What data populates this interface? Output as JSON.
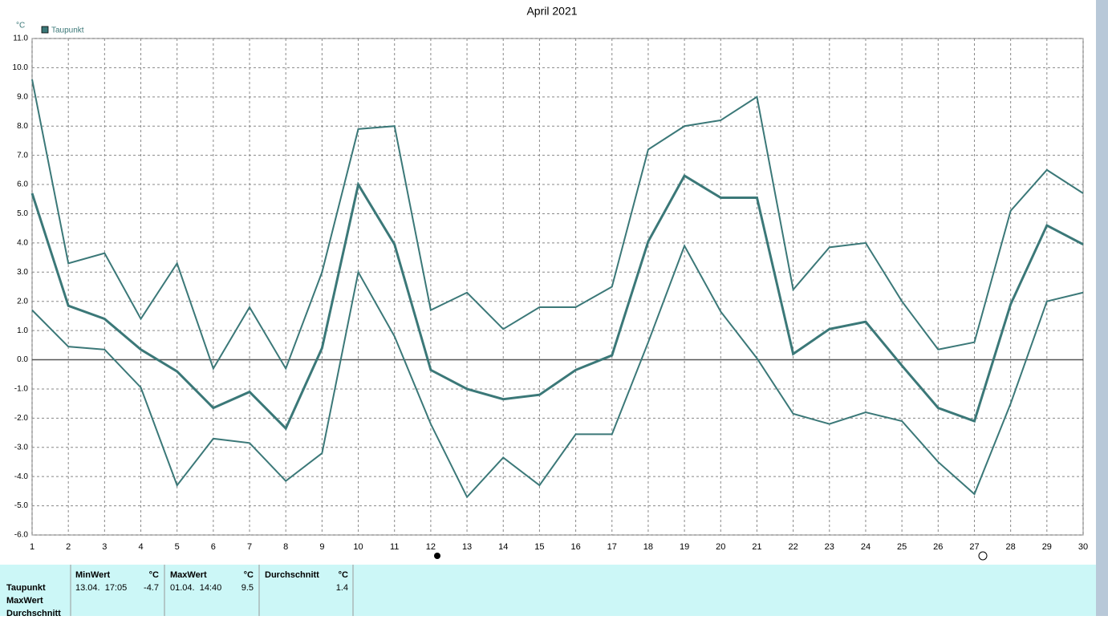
{
  "chart_data": {
    "type": "line",
    "title": "April 2021",
    "y_unit": "°C",
    "legend": "top-left",
    "grid": true,
    "color": "#3b7878",
    "x": [
      1,
      2,
      3,
      4,
      5,
      6,
      7,
      8,
      9,
      10,
      11,
      12,
      13,
      14,
      15,
      16,
      17,
      18,
      19,
      20,
      21,
      22,
      23,
      24,
      25,
      26,
      27,
      28,
      29,
      30
    ],
    "xlim": [
      1,
      30
    ],
    "xticks": [
      1,
      2,
      3,
      4,
      5,
      6,
      7,
      8,
      9,
      10,
      11,
      12,
      13,
      14,
      15,
      16,
      17,
      18,
      19,
      20,
      21,
      22,
      23,
      24,
      25,
      26,
      27,
      28,
      29,
      30
    ],
    "ylim": [
      -6,
      11
    ],
    "yticks": [
      {
        "value": -6,
        "label": "-6.0"
      },
      {
        "value": -5,
        "label": "-5.0"
      },
      {
        "value": -4,
        "label": "-4.0"
      },
      {
        "value": -3,
        "label": "-3.0"
      },
      {
        "value": -2,
        "label": "-2.0"
      },
      {
        "value": -1,
        "label": "-1.0"
      },
      {
        "value": 0,
        "label": "0.0"
      },
      {
        "value": 1,
        "label": "1.0"
      },
      {
        "value": 2,
        "label": "2.0"
      },
      {
        "value": 3,
        "label": "3.0"
      },
      {
        "value": 4,
        "label": "4.0"
      },
      {
        "value": 5,
        "label": "5.0"
      },
      {
        "value": 6,
        "label": "6.0"
      },
      {
        "value": 7,
        "label": "7.0"
      },
      {
        "value": 8,
        "label": "8.0"
      },
      {
        "value": 9,
        "label": "9.0"
      },
      {
        "value": 10,
        "label": "10.0"
      },
      {
        "value": 11,
        "label": "11.0"
      }
    ],
    "series": [
      {
        "name": "Taupunkt",
        "color": "#3b7878",
        "values": [
          5.7,
          1.85,
          1.4,
          0.35,
          -0.4,
          -1.65,
          -1.1,
          -2.35,
          0.4,
          6.0,
          3.95,
          -0.35,
          -1.0,
          -1.35,
          -1.2,
          -0.35,
          0.15,
          4.05,
          6.3,
          5.55,
          5.55,
          0.2,
          1.05,
          1.3,
          -0.2,
          -1.65,
          -2.1,
          1.9,
          4.6,
          3.95
        ]
      },
      {
        "color": "#3b7878",
        "values": [
          9.6,
          3.3,
          3.65,
          1.4,
          3.3,
          -0.3,
          1.8,
          -0.3,
          3.0,
          7.9,
          8.0,
          1.7,
          2.3,
          1.05,
          1.8,
          1.8,
          2.5,
          7.2,
          8.0,
          8.2,
          9.0,
          2.4,
          3.85,
          4.0,
          2.0,
          0.35,
          0.6,
          5.1,
          6.5,
          5.7
        ]
      },
      {
        "color": "#3b7878",
        "values": [
          1.7,
          0.45,
          0.35,
          -0.95,
          -4.3,
          -2.7,
          -2.85,
          -4.15,
          -3.2,
          3.0,
          0.8,
          -2.2,
          -4.7,
          -3.35,
          -4.3,
          -2.55,
          -2.55,
          0.6,
          3.9,
          1.65,
          0.05,
          -1.85,
          -2.2,
          -1.8,
          -2.1,
          -3.5,
          -4.6,
          -1.5,
          2.0,
          2.3
        ]
      }
    ]
  },
  "stats": {
    "headers": [
      "MinWert",
      "°C",
      "MaxWert",
      "°C",
      "Durchschnitt",
      "°C"
    ],
    "row_labels": [
      "Taupunkt",
      "MaxWert",
      "Durchschnitt"
    ],
    "row": [
      "13.04.  17:05",
      "-4.7",
      "01.04.  14:40",
      "9.5",
      "1.4"
    ]
  }
}
